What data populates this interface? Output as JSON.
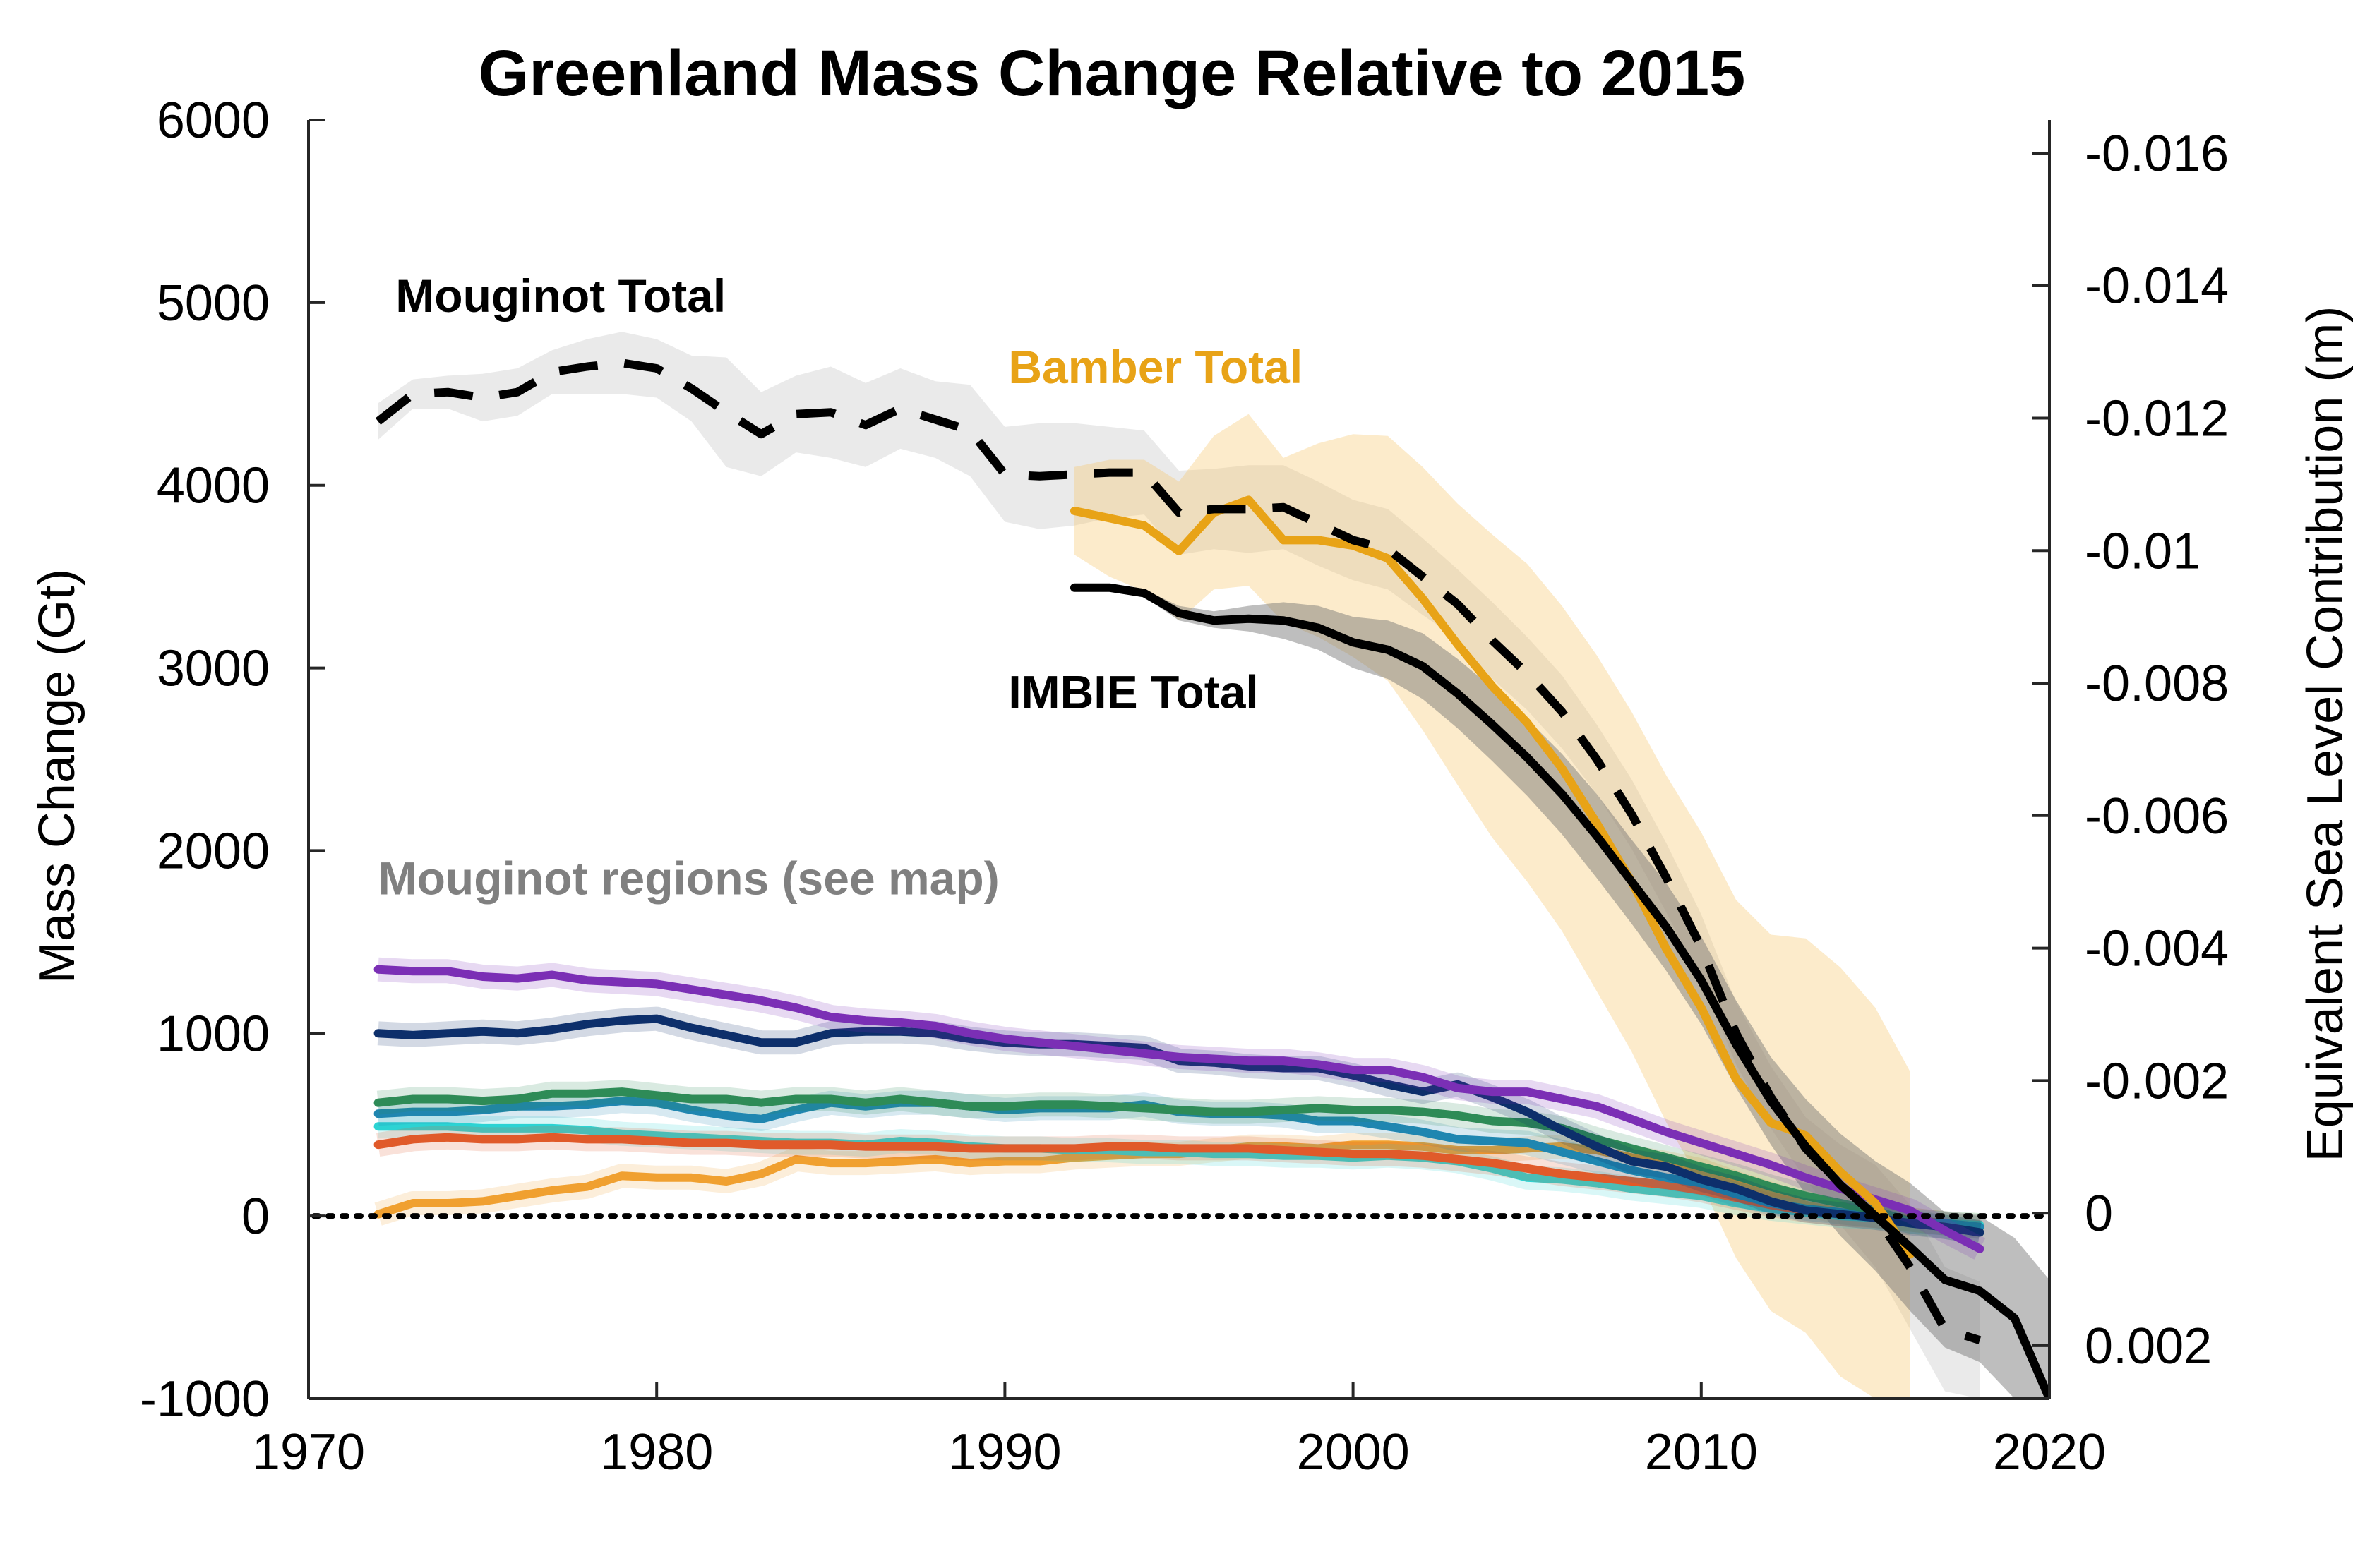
{
  "chart_data": {
    "type": "line",
    "title": "Greenland Mass Change Relative to 2015",
    "xlabel": "",
    "ylabel": "Mass Change (Gt)",
    "y2label": "Equivalent Sea Level Contribution (m)",
    "xlim": [
      1970,
      2020
    ],
    "ylim": [
      -1000,
      6000
    ],
    "y2lim": [
      0.0028,
      -0.0165
    ],
    "xticks": [
      "1970",
      "1980",
      "1990",
      "2000",
      "2010",
      "2020"
    ],
    "yticks": [
      "-1000",
      "0",
      "1000",
      "2000",
      "3000",
      "4000",
      "5000",
      "6000"
    ],
    "y2ticks": [
      {
        "value": 0.002,
        "label": "0.002"
      },
      {
        "value": 0,
        "label": "0"
      },
      {
        "value": -0.002,
        "label": "-0.002"
      },
      {
        "value": -0.004,
        "label": "-0.004"
      },
      {
        "value": -0.006,
        "label": "-0.006"
      },
      {
        "value": -0.008,
        "label": "-0.008"
      },
      {
        "value": -0.01,
        "label": "-0.01"
      },
      {
        "value": -0.012,
        "label": "-0.012"
      },
      {
        "value": -0.014,
        "label": "-0.014"
      },
      {
        "value": -0.016,
        "label": "-0.016"
      }
    ],
    "grid": false,
    "zero_line": {
      "y": 0,
      "style": "dotted"
    },
    "annotations": [
      {
        "text": "Mouginot Total",
        "x": 1972.5,
        "y": 4950,
        "color": "#000000"
      },
      {
        "text": "Bamber Total",
        "x": 1990.1,
        "y": 4560,
        "color": "#E8A317"
      },
      {
        "text": "IMBIE Total",
        "x": 1990.1,
        "y": 2780,
        "color": "#000000"
      },
      {
        "text": "Mouginot regions (see map)",
        "x": 1972.0,
        "y": 1760,
        "color": "#808080"
      }
    ],
    "series": [
      {
        "color": "#000000",
        "style": "dashed",
        "x": [
          1972,
          1973,
          1974,
          1975,
          1976,
          1977,
          1978,
          1979,
          1980,
          1981,
          1982,
          1983,
          1984,
          1985,
          1986,
          1987,
          1988,
          1989,
          1990,
          1991,
          1992,
          1993,
          1994,
          1995,
          1996,
          1997,
          1998,
          1999,
          2000,
          2001,
          2002,
          2003,
          2004,
          2005,
          2006,
          2007,
          2008,
          2009,
          2010,
          2011,
          2012,
          2013,
          2014,
          2015,
          2016,
          2017,
          2018
        ],
        "values": [
          4350,
          4500,
          4510,
          4480,
          4510,
          4620,
          4650,
          4670,
          4640,
          4530,
          4400,
          4280,
          4390,
          4400,
          4330,
          4420,
          4360,
          4300,
          4060,
          4050,
          4060,
          4070,
          4070,
          3850,
          3870,
          3870,
          3880,
          3790,
          3700,
          3650,
          3500,
          3350,
          3150,
          2970,
          2760,
          2500,
          2200,
          1850,
          1470,
          1000,
          650,
          370,
          170,
          0,
          -280,
          -620,
          -680
        ],
        "band_low": [
          4250,
          4420,
          4420,
          4350,
          4380,
          4500,
          4500,
          4500,
          4480,
          4350,
          4100,
          4050,
          4180,
          4150,
          4100,
          4200,
          4150,
          4050,
          3800,
          3760,
          3780,
          3820,
          3840,
          3620,
          3650,
          3630,
          3650,
          3560,
          3480,
          3430,
          3290,
          3160,
          2940,
          2770,
          2560,
          2310,
          2010,
          1660,
          1290,
          830,
          480,
          200,
          -50,
          -280,
          -620,
          -960,
          -1000
        ],
        "band_high": [
          4450,
          4580,
          4600,
          4610,
          4640,
          4740,
          4800,
          4840,
          4800,
          4710,
          4700,
          4510,
          4600,
          4650,
          4560,
          4640,
          4570,
          4550,
          4320,
          4340,
          4340,
          4320,
          4300,
          4080,
          4090,
          4110,
          4110,
          4020,
          3920,
          3870,
          3710,
          3540,
          3360,
          3170,
          2960,
          2690,
          2390,
          2040,
          1650,
          1170,
          820,
          540,
          390,
          280,
          60,
          -280,
          -360
        ]
      },
      {
        "color": "#000000",
        "style": "solid",
        "x": [
          1992,
          1993,
          1994,
          1995,
          1996,
          1997,
          1998,
          1999,
          2000,
          2001,
          2002,
          2003,
          2004,
          2005,
          2006,
          2007,
          2008,
          2009,
          2010,
          2011,
          2012,
          2013,
          2014,
          2015,
          2016,
          2017,
          2018,
          2019,
          2020
        ],
        "values": [
          3440,
          3440,
          3410,
          3300,
          3260,
          3270,
          3260,
          3220,
          3140,
          3100,
          3010,
          2860,
          2690,
          2510,
          2310,
          2080,
          1830,
          1580,
          1290,
          940,
          630,
          380,
          170,
          0,
          -170,
          -350,
          -410,
          -560,
          -1000
        ],
        "band_low": [
          3440,
          3420,
          3390,
          3260,
          3220,
          3200,
          3160,
          3100,
          3000,
          2940,
          2830,
          2670,
          2490,
          2300,
          2090,
          1850,
          1600,
          1340,
          1050,
          700,
          390,
          120,
          -110,
          -300,
          -520,
          -720,
          -800,
          -1000,
          -1000
        ],
        "band_high": [
          3440,
          3460,
          3430,
          3340,
          3310,
          3340,
          3360,
          3340,
          3280,
          3260,
          3190,
          3050,
          2890,
          2720,
          2530,
          2310,
          2060,
          1820,
          1530,
          1180,
          870,
          640,
          450,
          300,
          180,
          20,
          0,
          -120,
          -350
        ]
      },
      {
        "color": "#E8A317",
        "style": "solid",
        "x": [
          1992,
          1993,
          1994,
          1995,
          1996,
          1997,
          1998,
          1999,
          2000,
          2001,
          2002,
          2003,
          2004,
          2005,
          2006,
          2007,
          2008,
          2009,
          2010,
          2011,
          2012,
          2013,
          2014,
          2015,
          2016
        ],
        "values": [
          3860,
          3820,
          3780,
          3640,
          3850,
          3920,
          3700,
          3700,
          3670,
          3600,
          3380,
          3130,
          2900,
          2700,
          2450,
          2150,
          1830,
          1460,
          1140,
          750,
          510,
          440,
          240,
          70,
          -210
        ],
        "band_low": [
          3620,
          3500,
          3420,
          3260,
          3430,
          3450,
          3250,
          3170,
          3060,
          2930,
          2660,
          2360,
          2070,
          1830,
          1560,
          1230,
          900,
          510,
          180,
          -230,
          -520,
          -640,
          -880,
          -1000,
          -1000
        ],
        "band_high": [
          4100,
          4140,
          4140,
          4020,
          4270,
          4390,
          4150,
          4230,
          4280,
          4270,
          4100,
          3900,
          3730,
          3570,
          3340,
          3070,
          2760,
          2410,
          2100,
          1730,
          1540,
          1520,
          1360,
          1140,
          790
        ]
      },
      {
        "color": "#7B2FB5",
        "style": "solid",
        "x": [
          1972,
          1973,
          1974,
          1975,
          1976,
          1977,
          1978,
          1979,
          1980,
          1981,
          1982,
          1983,
          1984,
          1985,
          1986,
          1987,
          1988,
          1989,
          1990,
          1991,
          1992,
          1993,
          1994,
          1995,
          1996,
          1997,
          1998,
          1999,
          2000,
          2001,
          2002,
          2003,
          2004,
          2005,
          2006,
          2007,
          2008,
          2009,
          2010,
          2011,
          2012,
          2013,
          2014,
          2015,
          2016,
          2017,
          2018
        ],
        "values": [
          1350,
          1340,
          1340,
          1310,
          1300,
          1320,
          1290,
          1280,
          1270,
          1240,
          1210,
          1180,
          1140,
          1090,
          1070,
          1060,
          1040,
          1000,
          970,
          950,
          930,
          910,
          890,
          870,
          860,
          850,
          850,
          830,
          800,
          800,
          760,
          700,
          680,
          680,
          640,
          600,
          530,
          460,
          400,
          340,
          280,
          210,
          150,
          90,
          30,
          -80,
          -180
        ]
      },
      {
        "color": "#0D2F6B",
        "style": "solid",
        "x": [
          1972,
          1973,
          1974,
          1975,
          1976,
          1977,
          1978,
          1979,
          1980,
          1981,
          1982,
          1983,
          1984,
          1985,
          1986,
          1987,
          1988,
          1989,
          1990,
          1991,
          1992,
          1993,
          1994,
          1995,
          1996,
          1997,
          1998,
          1999,
          2000,
          2001,
          2002,
          2003,
          2004,
          2005,
          2006,
          2007,
          2008,
          2009,
          2010,
          2011,
          2012,
          2013,
          2014,
          2015,
          2016,
          2017,
          2018
        ],
        "values": [
          1000,
          990,
          1000,
          1010,
          1000,
          1020,
          1050,
          1070,
          1080,
          1030,
          990,
          950,
          950,
          1000,
          1010,
          1010,
          1000,
          970,
          950,
          940,
          940,
          930,
          920,
          850,
          840,
          820,
          810,
          810,
          770,
          720,
          680,
          720,
          650,
          570,
          470,
          380,
          300,
          270,
          200,
          150,
          80,
          30,
          10,
          -10,
          -40,
          -60,
          -90
        ]
      },
      {
        "color": "#2E8B57",
        "style": "solid",
        "x": [
          1972,
          1973,
          1974,
          1975,
          1976,
          1977,
          1978,
          1979,
          1980,
          1981,
          1982,
          1983,
          1984,
          1985,
          1986,
          1987,
          1988,
          1989,
          1990,
          1991,
          1992,
          1993,
          1994,
          1995,
          1996,
          1997,
          1998,
          1999,
          2000,
          2001,
          2002,
          2003,
          2004,
          2005,
          2006,
          2007,
          2008,
          2009,
          2010,
          2011,
          2012,
          2013,
          2014,
          2015,
          2016,
          2017,
          2018
        ],
        "values": [
          620,
          640,
          640,
          630,
          640,
          670,
          670,
          680,
          660,
          640,
          640,
          620,
          640,
          640,
          620,
          640,
          620,
          600,
          600,
          610,
          610,
          600,
          590,
          580,
          570,
          570,
          580,
          590,
          580,
          580,
          570,
          550,
          520,
          510,
          480,
          420,
          370,
          320,
          270,
          220,
          160,
          110,
          70,
          30,
          -30,
          -60,
          -90
        ]
      },
      {
        "color": "#1F86B0",
        "style": "solid",
        "x": [
          1972,
          1973,
          1974,
          1975,
          1976,
          1977,
          1978,
          1979,
          1980,
          1981,
          1982,
          1983,
          1984,
          1985,
          1986,
          1987,
          1988,
          1989,
          1990,
          1991,
          1992,
          1993,
          1994,
          1995,
          1996,
          1997,
          1998,
          1999,
          2000,
          2001,
          2002,
          2003,
          2004,
          2005,
          2006,
          2007,
          2008,
          2009,
          2010,
          2011,
          2012,
          2013,
          2014,
          2015,
          2016,
          2017,
          2018
        ],
        "values": [
          560,
          570,
          570,
          580,
          600,
          600,
          610,
          630,
          620,
          580,
          550,
          530,
          580,
          620,
          600,
          620,
          620,
          600,
          580,
          590,
          590,
          590,
          610,
          570,
          560,
          560,
          550,
          520,
          520,
          490,
          460,
          420,
          410,
          400,
          350,
          300,
          250,
          210,
          180,
          120,
          70,
          40,
          20,
          0,
          -30,
          -40,
          -60
        ]
      },
      {
        "color": "#E05A2A",
        "style": "solid",
        "x": [
          1972,
          1973,
          1974,
          1975,
          1976,
          1977,
          1978,
          1979,
          1980,
          1981,
          1982,
          1983,
          1984,
          1985,
          1986,
          1987,
          1988,
          1989,
          1990,
          1991,
          1992,
          1993,
          1994,
          1995,
          1996,
          1997,
          1998,
          1999,
          2000,
          2001,
          2002,
          2003,
          2004,
          2005,
          2006,
          2007,
          2008,
          2009,
          2010,
          2011,
          2012,
          2013,
          2014,
          2015,
          2016,
          2017,
          2018
        ],
        "values": [
          390,
          420,
          430,
          420,
          420,
          430,
          420,
          420,
          410,
          400,
          400,
          390,
          390,
          390,
          380,
          380,
          380,
          370,
          370,
          370,
          370,
          380,
          380,
          370,
          370,
          370,
          360,
          350,
          340,
          340,
          330,
          310,
          290,
          260,
          230,
          210,
          190,
          170,
          140,
          100,
          60,
          30,
          10,
          0,
          -20,
          -40,
          -60
        ]
      },
      {
        "color": "#2CD3D3",
        "style": "solid",
        "x": [
          1972,
          1973,
          1974,
          1975,
          1976,
          1977,
          1978,
          1979,
          1980,
          1981,
          1982,
          1983,
          1984,
          1985,
          1986,
          1987,
          1988,
          1989,
          1990,
          1991,
          1992,
          1993,
          1994,
          1995,
          1996,
          1997,
          1998,
          1999,
          2000,
          2001,
          2002,
          2003,
          2004,
          2005,
          2006,
          2007,
          2008,
          2009,
          2010,
          2011,
          2012,
          2013,
          2014,
          2015,
          2016,
          2017,
          2018
        ],
        "values": [
          490,
          490,
          490,
          480,
          480,
          480,
          470,
          450,
          440,
          430,
          420,
          410,
          400,
          400,
          390,
          410,
          400,
          380,
          370,
          370,
          360,
          360,
          350,
          350,
          340,
          340,
          330,
          330,
          320,
          330,
          320,
          300,
          260,
          210,
          200,
          180,
          150,
          130,
          110,
          70,
          40,
          20,
          0,
          -10,
          -20,
          -40,
          -50
        ]
      },
      {
        "color": "#F0A030",
        "style": "solid",
        "x": [
          1972,
          1973,
          1974,
          1975,
          1976,
          1977,
          1978,
          1979,
          1980,
          1981,
          1982,
          1983,
          1984,
          1985,
          1986,
          1987,
          1988,
          1989,
          1990,
          1991,
          1992,
          1993,
          1994,
          1995,
          1996,
          1997,
          1998,
          1999,
          2000,
          2001,
          2002,
          2003,
          2004,
          2005,
          2006,
          2007,
          2008,
          2009,
          2010,
          2011,
          2012,
          2013,
          2014,
          2015,
          2016,
          2017,
          2018
        ],
        "values": [
          10,
          70,
          70,
          80,
          110,
          140,
          160,
          220,
          210,
          210,
          190,
          230,
          310,
          290,
          290,
          300,
          310,
          290,
          300,
          300,
          320,
          330,
          340,
          340,
          360,
          380,
          380,
          370,
          390,
          390,
          380,
          360,
          360,
          370,
          380,
          360,
          320,
          290,
          250,
          180,
          120,
          60,
          20,
          0,
          -20,
          -40,
          -50
        ]
      }
    ]
  }
}
